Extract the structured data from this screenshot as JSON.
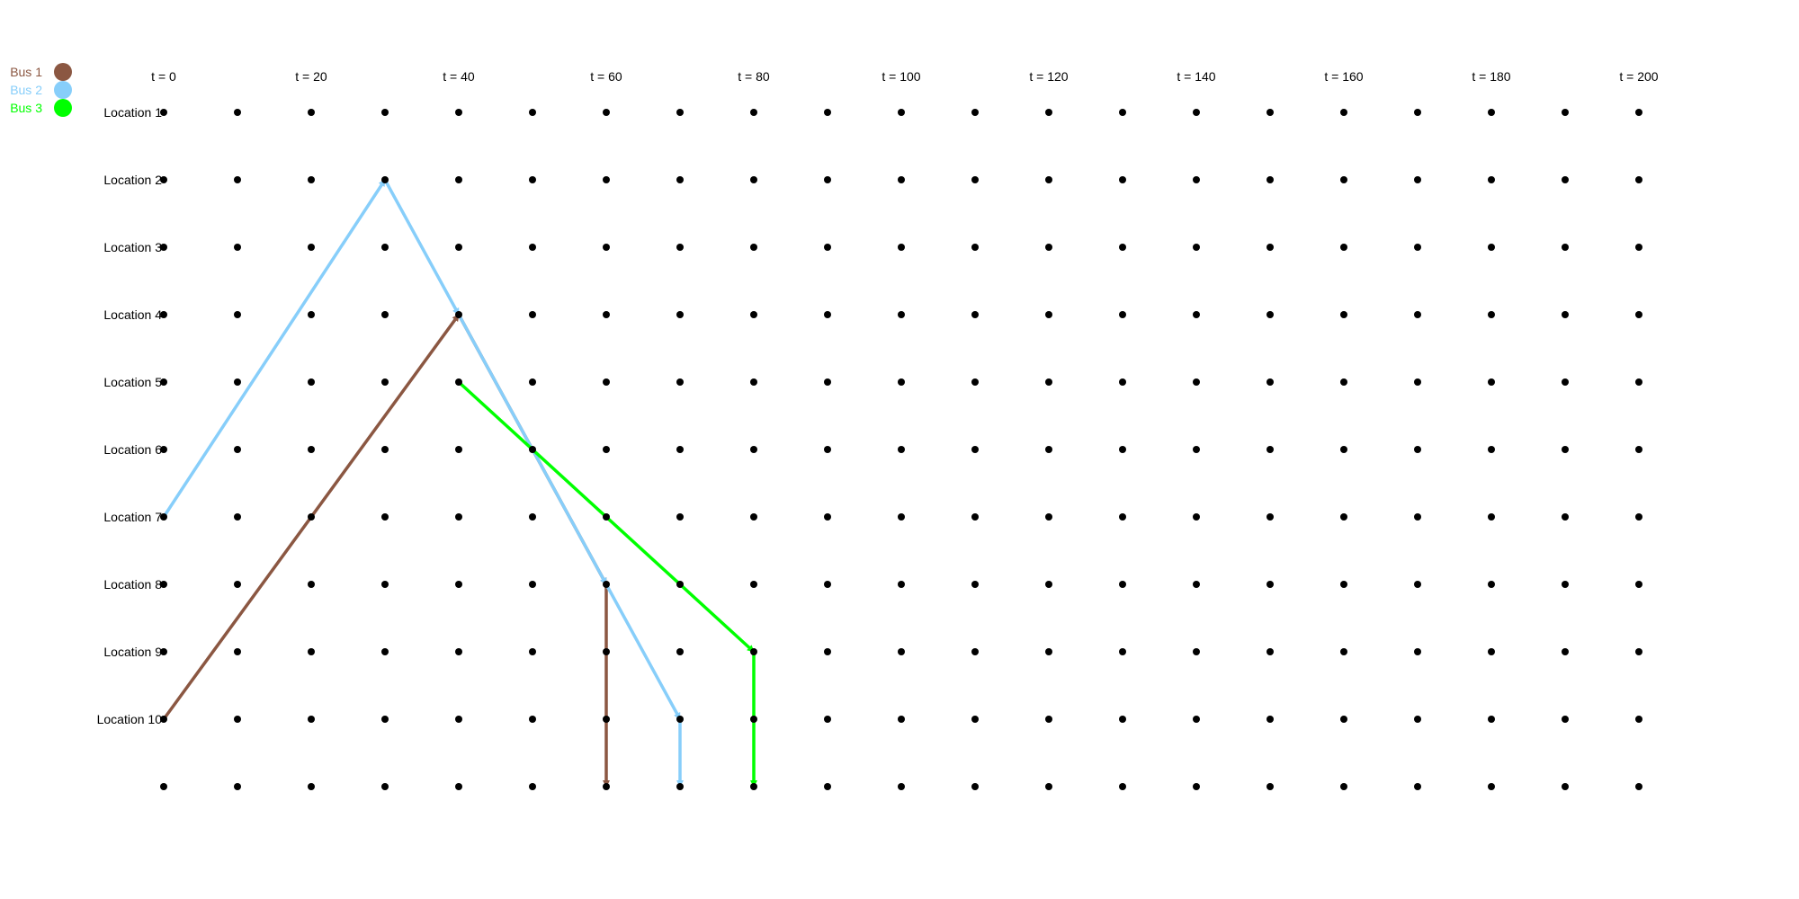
{
  "legend": [
    {
      "label": "Bus 1",
      "color": "#8B5742"
    },
    {
      "label": "Bus 2",
      "color": "#87CEFA"
    },
    {
      "label": "Bus 3",
      "color": "#00FF00"
    }
  ],
  "time_labels": [
    "t = 0",
    "t = 20",
    "t = 40",
    "t = 60",
    "t = 80",
    "t = 100",
    "t = 120",
    "t = 140",
    "t = 160",
    "t = 180",
    "t = 200"
  ],
  "time_steps": [
    0,
    10,
    20,
    30,
    40,
    50,
    60,
    70,
    80,
    90,
    100,
    110,
    120,
    130,
    140,
    150,
    160,
    170,
    180,
    190,
    200
  ],
  "location_labels": [
    "Location 1",
    "Location 2",
    "Location 3",
    "Location 4",
    "Location 5",
    "Location 6",
    "Location 7",
    "Location 8",
    "Location 9",
    "Location 10",
    ""
  ],
  "routes": [
    {
      "bus": "Bus 1",
      "color": "#8B5742",
      "stops": [
        [
          0,
          10
        ],
        [
          40,
          4
        ],
        [
          60,
          8
        ],
        [
          60,
          11
        ]
      ]
    },
    {
      "bus": "Bus 2",
      "color": "#87CEFA",
      "stops": [
        [
          0,
          7
        ],
        [
          30,
          2
        ],
        [
          40,
          4
        ],
        [
          60,
          8
        ],
        [
          70,
          10
        ],
        [
          70,
          11
        ]
      ]
    },
    {
      "bus": "Bus 3",
      "color": "#00FF00",
      "stops": [
        [
          40,
          5
        ],
        [
          80,
          9
        ],
        [
          80,
          11
        ]
      ]
    }
  ]
}
